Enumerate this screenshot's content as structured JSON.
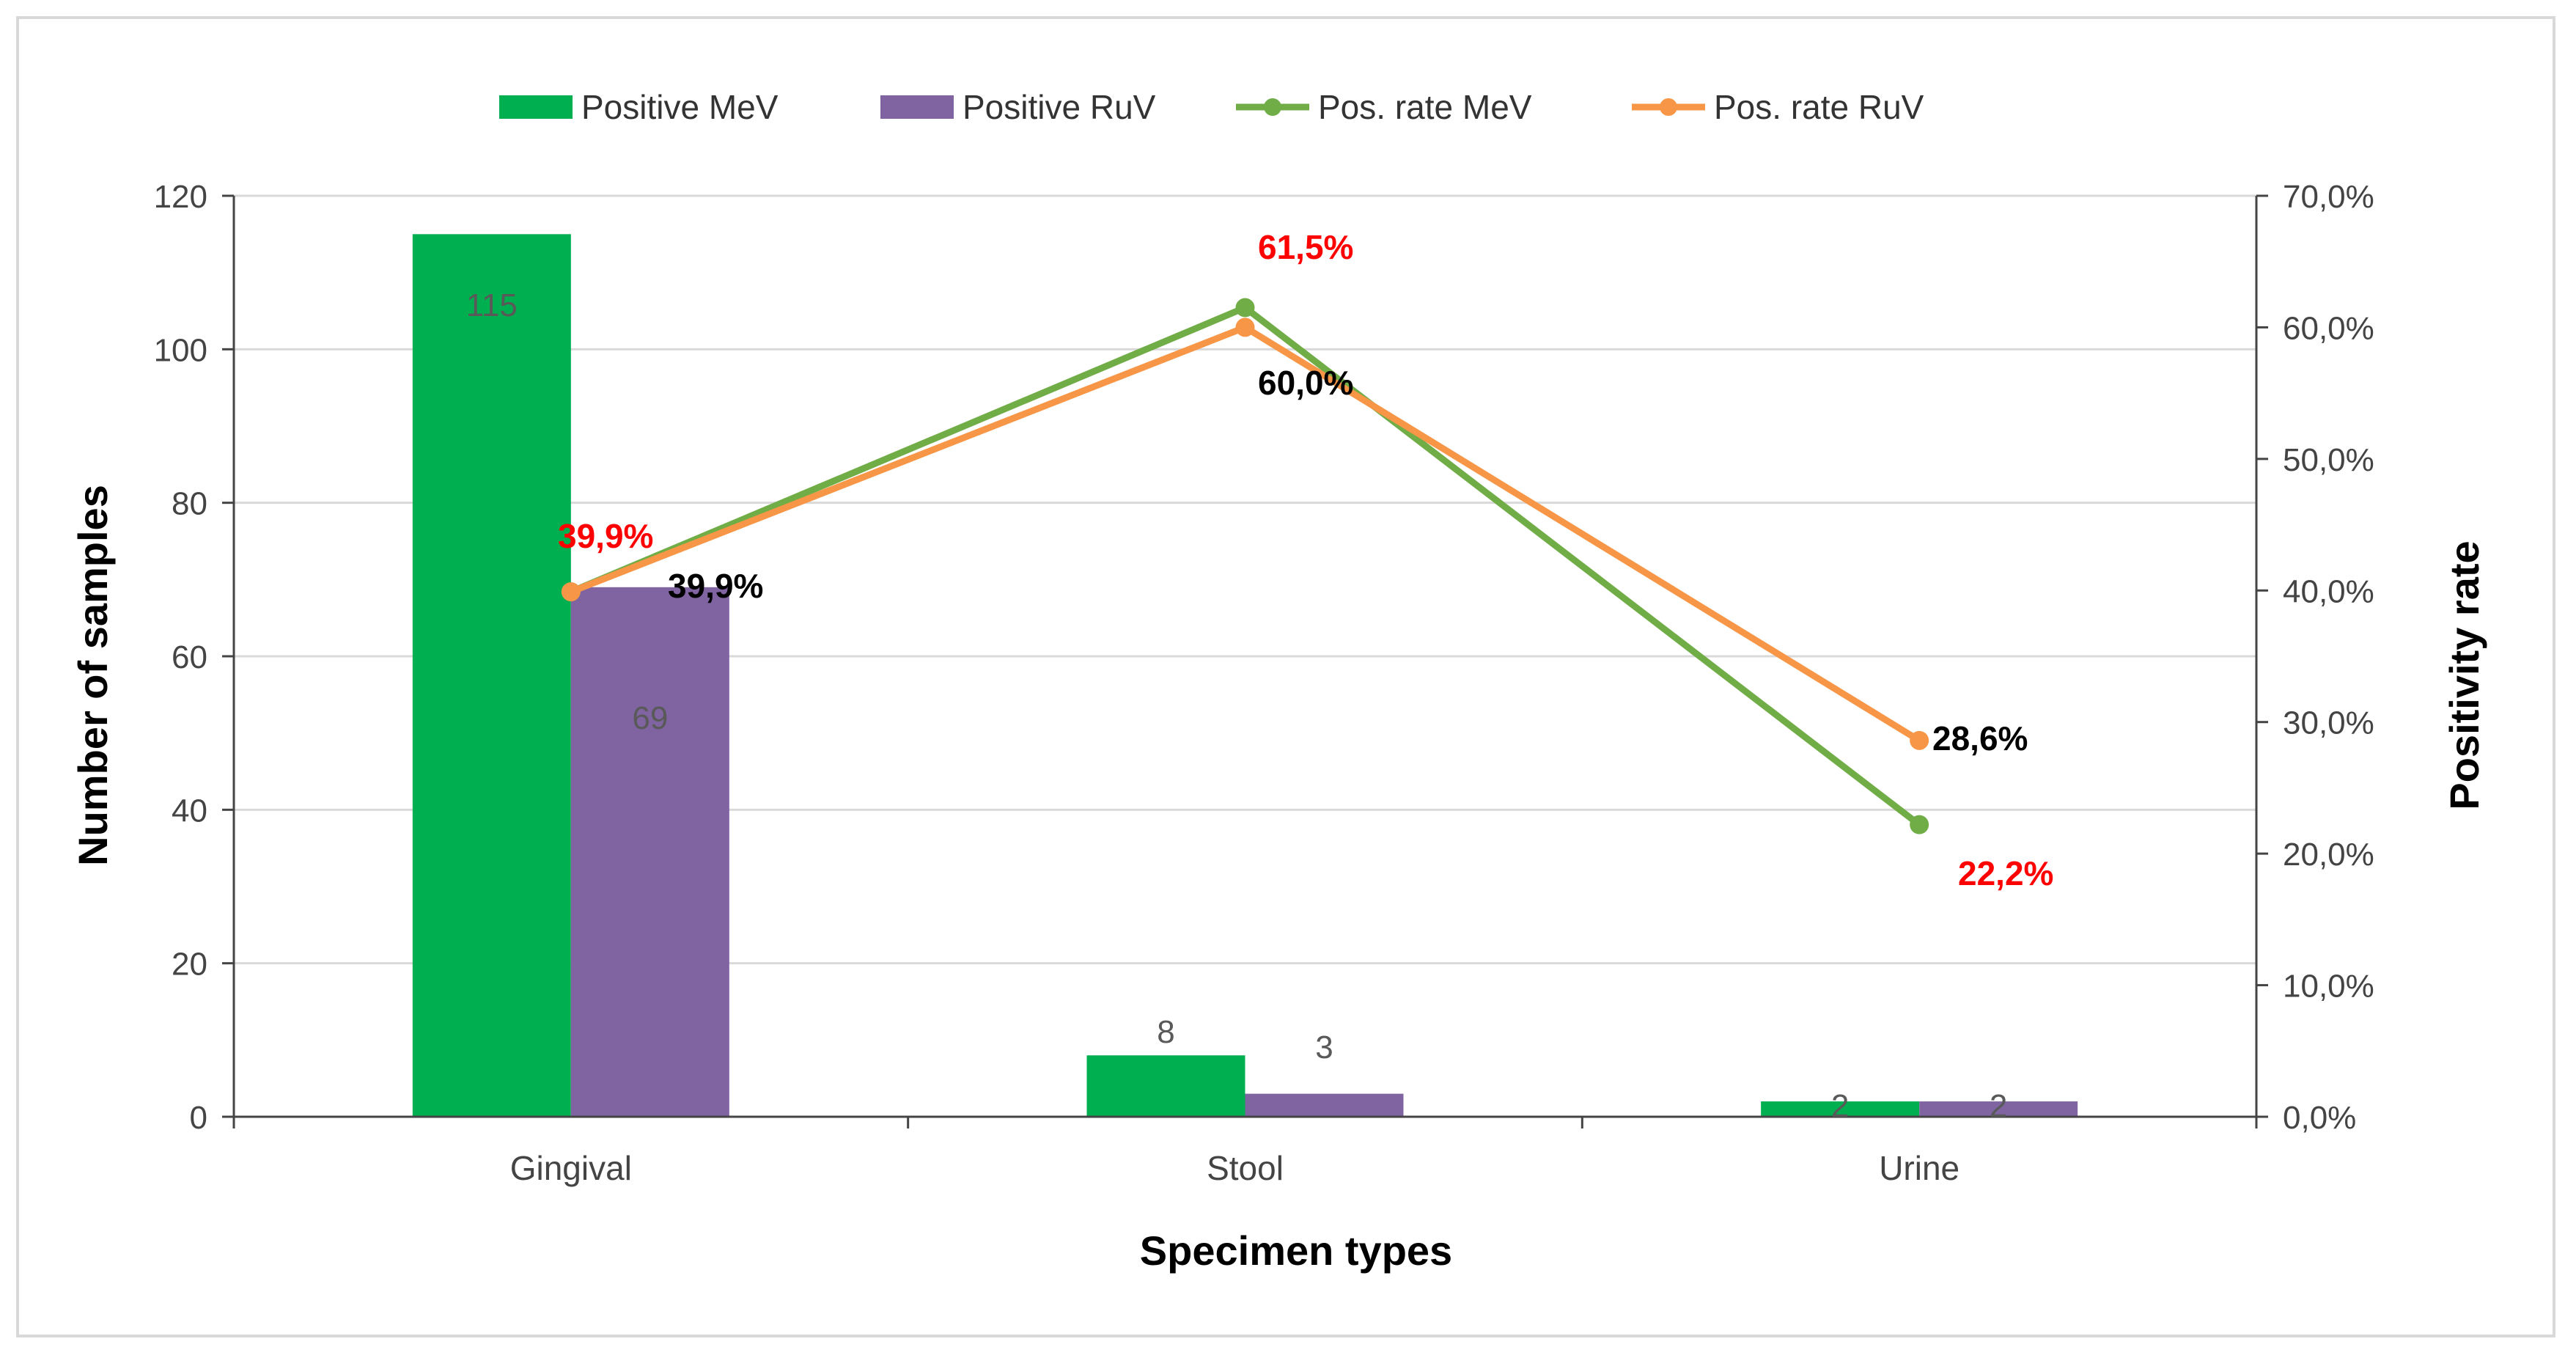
{
  "chart_data": {
    "type": "bar",
    "categories": [
      "Gingival",
      "Stool",
      "Urine"
    ],
    "xlabel": "Specimen types",
    "ylabel": "Number of samples",
    "y2label": "Positivity rate",
    "ylim": [
      0,
      120
    ],
    "yticks": [
      "0",
      "20",
      "40",
      "60",
      "80",
      "100",
      "120"
    ],
    "y2lim": [
      0,
      70
    ],
    "y2ticks": [
      "0,0%",
      "10,0%",
      "20,0%",
      "30,0%",
      "40,0%",
      "50,0%",
      "60,0%",
      "70,0%"
    ],
    "grid": true,
    "legend": "top",
    "bar_series": [
      {
        "name": "Positive MeV",
        "color": "#00b050",
        "values": [
          115,
          8,
          2
        ],
        "labels": [
          "115",
          "8",
          "2"
        ]
      },
      {
        "name": "Positive RuV",
        "color": "#8064a2",
        "values": [
          69,
          3,
          2
        ],
        "labels": [
          "69",
          "3",
          "2"
        ]
      }
    ],
    "line_series": [
      {
        "name": "Pos. rate MeV",
        "color": "#70ad47",
        "values": [
          39.9,
          61.5,
          22.2
        ],
        "labels": [
          "39,9%",
          "61,5%",
          "22,2%"
        ],
        "label_color": "#ff0000"
      },
      {
        "name": "Pos. rate RuV",
        "color": "#f79646",
        "values": [
          39.9,
          60.0,
          28.6
        ],
        "labels": [
          "39,9%",
          "60,0%",
          "28,6%"
        ],
        "label_color": "#000000"
      }
    ]
  }
}
